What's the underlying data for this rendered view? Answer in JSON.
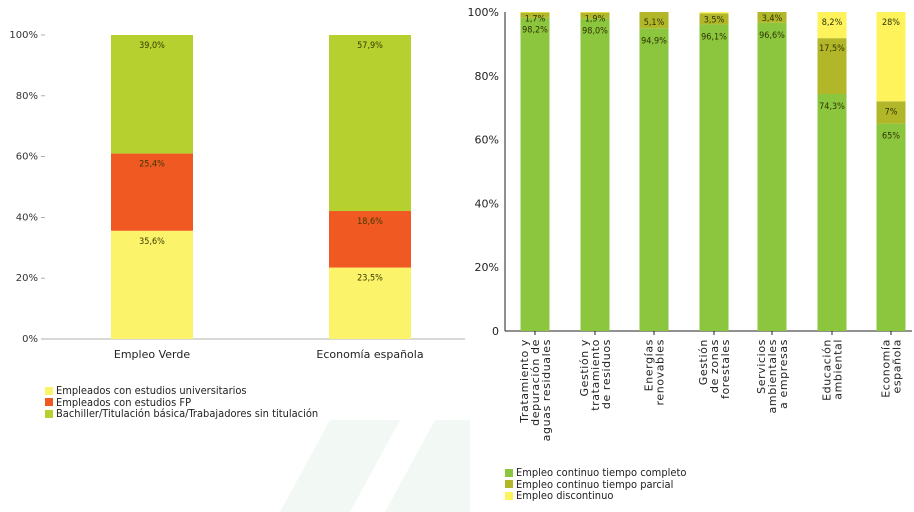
{
  "colors": {
    "universitarios": "#fbf46a",
    "fp": "#f05a22",
    "bachiller": "#b6d02f",
    "completo": "#8cc63f",
    "parcial": "#b2b72a",
    "discontinuo": "#fff35c"
  },
  "chart_data": [
    {
      "type": "bar",
      "stacked": true,
      "categories": [
        "Empleo Verde",
        "Economía española"
      ],
      "series": [
        {
          "name": "Empleados con estudios universitarios",
          "values": [
            35.6,
            23.5
          ],
          "labels": [
            "35,6%",
            "23,5%"
          ]
        },
        {
          "name": "Empleados con estudios FP",
          "values": [
            25.4,
            18.6
          ],
          "labels": [
            "25,4%",
            "18,6%"
          ]
        },
        {
          "name": "Bachiller/Titulación básica/Trabajadores sin titulación",
          "values": [
            39.0,
            57.9
          ],
          "labels": [
            "39,0%",
            "57,9%"
          ]
        }
      ],
      "yticks": [
        "0%",
        "20%",
        "40%",
        "60%",
        "80%",
        "100%"
      ],
      "ylim": [
        0,
        100
      ],
      "legend_position": "bottom-left"
    },
    {
      "type": "bar",
      "stacked": true,
      "categories": [
        [
          "Tratamiento y",
          "depuración de",
          "aguas residuales"
        ],
        [
          "Gestión y",
          "tratamiento",
          "de residuos"
        ],
        [
          "Energías",
          "renovables"
        ],
        [
          "Gestión",
          "de zonas",
          "forestales"
        ],
        [
          "Servicios",
          "ambientales",
          "a empresas"
        ],
        [
          "Educación",
          "ambiental"
        ],
        [
          "Economía",
          "española"
        ]
      ],
      "series": [
        {
          "name": "Empleo continuo tiempo completo",
          "values": [
            98.2,
            98.0,
            94.9,
            96.1,
            96.6,
            74.3,
            65
          ],
          "labels": [
            "98,2%",
            "98,0%",
            "94,9%",
            "96,1%",
            "96,6%",
            "74,3%",
            "65%"
          ]
        },
        {
          "name": "Empleo continuo tiempo parcial",
          "values": [
            1.7,
            1.9,
            5.1,
            3.5,
            3.4,
            17.5,
            7
          ],
          "labels": [
            "1,7%",
            "1,9%",
            "5,1%",
            "3,5%",
            "3,4%",
            "17,5%",
            "7%"
          ]
        },
        {
          "name": "Empleo discontinuo",
          "values": [
            0.1,
            0.1,
            0,
            0.4,
            0,
            8.2,
            28
          ],
          "labels": [
            "",
            "",
            "",
            "",
            "",
            "8,2%",
            "28%"
          ]
        }
      ],
      "yticks": [
        "0",
        "20%",
        "40%",
        "60%",
        "80%",
        "100%"
      ],
      "ylim": [
        0,
        100
      ],
      "legend_position": "bottom-left"
    }
  ]
}
